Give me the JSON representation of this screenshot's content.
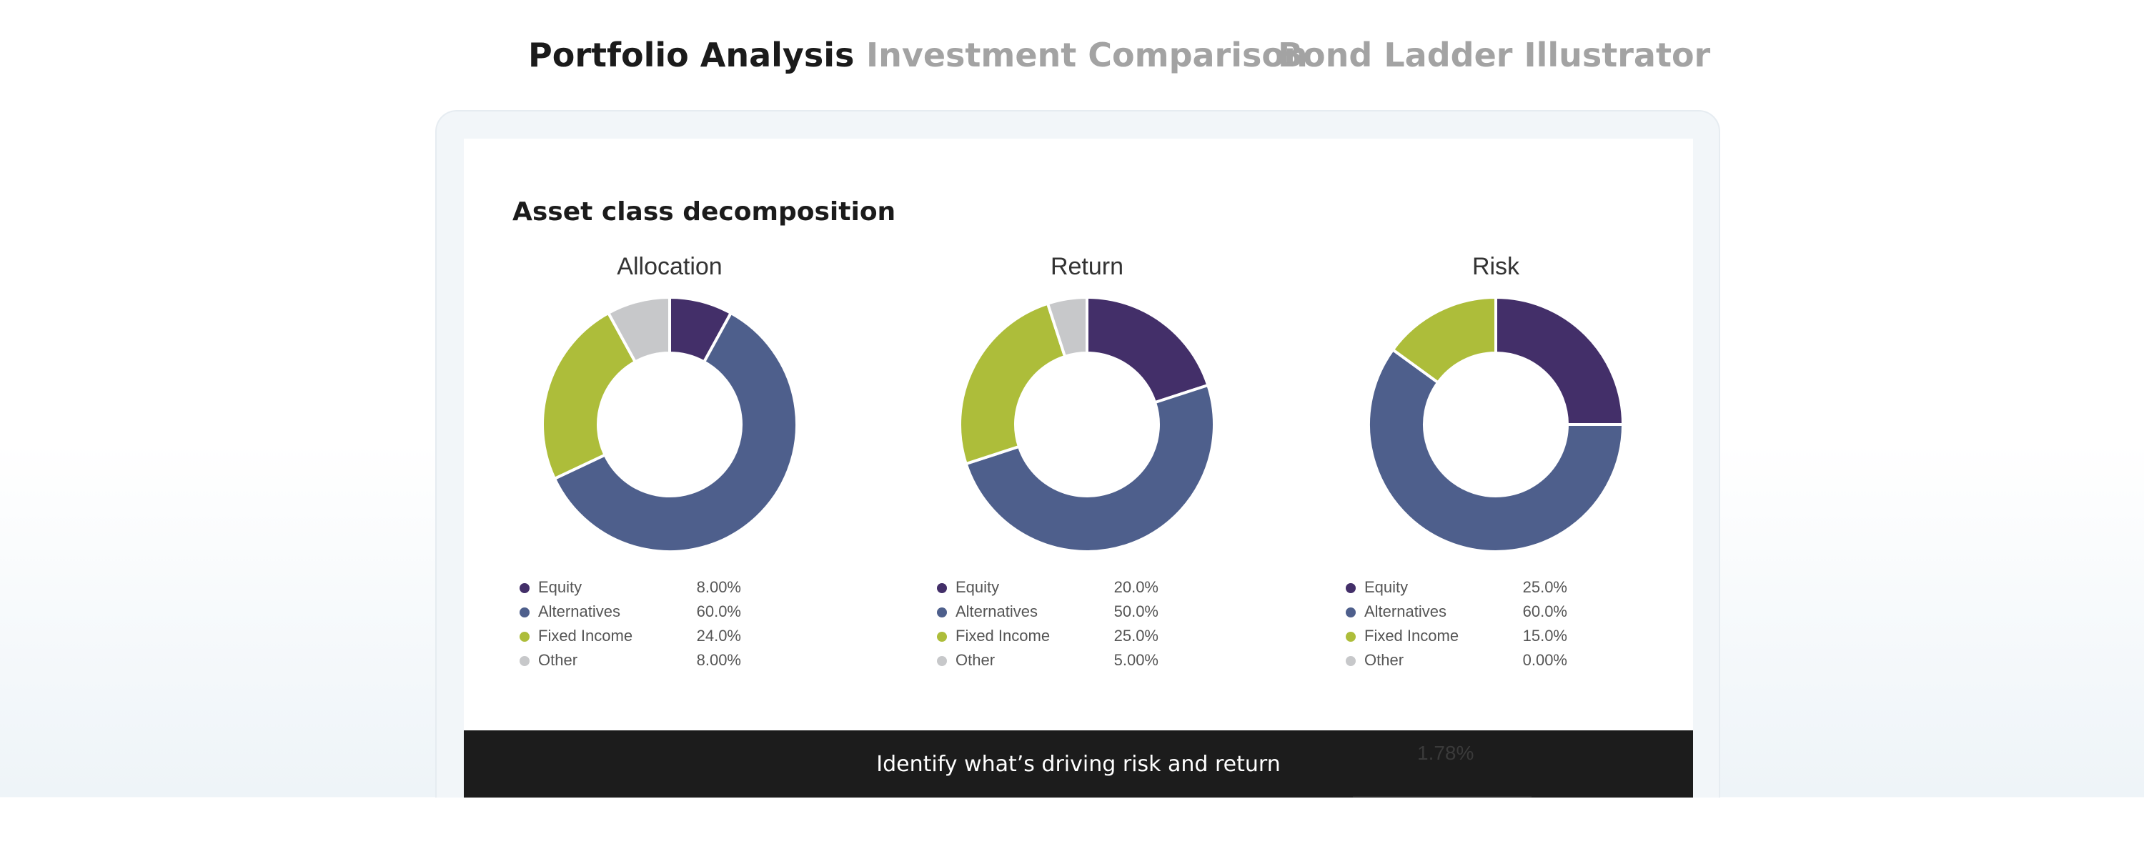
{
  "tabs": [
    {
      "label": "Portfolio Analysis",
      "active": true
    },
    {
      "label": "Investment Comparison",
      "active": false
    },
    {
      "label": "Bond Ladder Illustrator",
      "active": false
    }
  ],
  "section": {
    "title": "Asset class decomposition"
  },
  "colors": {
    "Equity": "#432f69",
    "Alternatives": "#4e5f8c",
    "Fixed Income": "#adbd3a",
    "Other": "#c7c8ca"
  },
  "chart_data": [
    {
      "type": "pie",
      "title": "Allocation",
      "categories": [
        "Equity",
        "Alternatives",
        "Fixed Income",
        "Other"
      ],
      "values": [
        8.0,
        60.0,
        24.0,
        8.0
      ],
      "value_labels": [
        "8.00%",
        "60.0%",
        "24.0%",
        "8.00%"
      ]
    },
    {
      "type": "pie",
      "title": "Return",
      "categories": [
        "Equity",
        "Alternatives",
        "Fixed Income",
        "Other"
      ],
      "values": [
        20.0,
        50.0,
        25.0,
        5.0
      ],
      "value_labels": [
        "20.0%",
        "50.0%",
        "25.0%",
        "5.00%"
      ]
    },
    {
      "type": "pie",
      "title": "Risk",
      "categories": [
        "Equity",
        "Alternatives",
        "Fixed Income",
        "Other"
      ],
      "values": [
        25.0,
        60.0,
        15.0,
        0.0
      ],
      "value_labels": [
        "25.0%",
        "60.0%",
        "15.0%",
        "0.00%"
      ]
    }
  ],
  "banner": {
    "text": "Identify what’s driving risk and return",
    "ghost_value": "1.78%"
  }
}
